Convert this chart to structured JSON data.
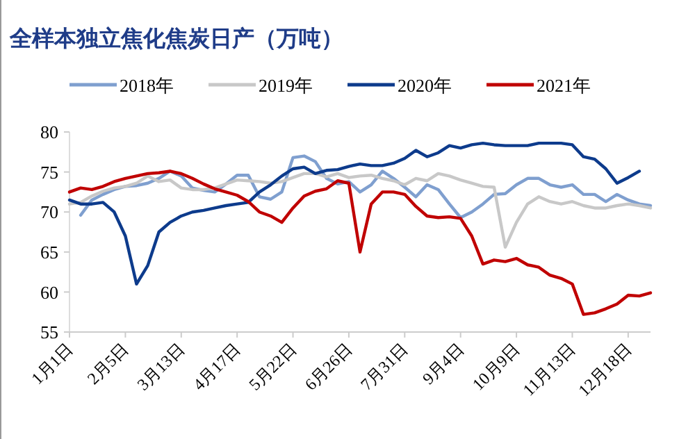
{
  "chart_data": {
    "type": "line",
    "title": "全样本独立焦化焦炭日产（万吨）",
    "categories": [
      "1月1日",
      null,
      null,
      null,
      null,
      "2月5日",
      null,
      null,
      null,
      null,
      "3月13日",
      null,
      null,
      null,
      null,
      "4月17日",
      null,
      null,
      null,
      null,
      "5月22日",
      null,
      null,
      null,
      null,
      "6月26日",
      null,
      null,
      null,
      null,
      "7月31日",
      null,
      null,
      null,
      null,
      "9月4日",
      null,
      null,
      null,
      null,
      "10月9日",
      null,
      null,
      null,
      null,
      "11月13日",
      null,
      null,
      null,
      null,
      "12月18日",
      null,
      null
    ],
    "series": [
      {
        "name": "2018年",
        "color": "#7f9fcf",
        "values": [
          null,
          69.6,
          71.5,
          72.2,
          72.8,
          73.2,
          73.3,
          73.6,
          74.2,
          75.1,
          74.5,
          73,
          72.7,
          72.5,
          73.5,
          74.6,
          74.6,
          71.9,
          71.6,
          72.5,
          76.8,
          77,
          76.3,
          74.2,
          73.5,
          73.8,
          72.5,
          73.4,
          75.1,
          74.2,
          73.1,
          71.9,
          73.4,
          72.8,
          71,
          69.3,
          70,
          71,
          72.2,
          72.3,
          73.4,
          74.2,
          74.2,
          73.4,
          73.1,
          73.4,
          72.2,
          72.2,
          71.3,
          72.2,
          71.5,
          71,
          70.8
        ]
      },
      {
        "name": "2019年",
        "color": "#c8c8c8",
        "values": [
          71,
          71.2,
          72,
          72.6,
          73,
          73.2,
          73.6,
          74.5,
          73.8,
          74,
          73,
          72.8,
          72.8,
          73,
          73.5,
          74,
          73.9,
          73.8,
          73.6,
          73.8,
          74.3,
          74.8,
          74.8,
          74.4,
          74.8,
          74.3,
          74.5,
          74.6,
          74.2,
          73.9,
          73.4,
          74.2,
          73.9,
          74.8,
          74.5,
          74,
          73.6,
          73.2,
          73.1,
          65.6,
          68.7,
          71,
          71.9,
          71.3,
          71,
          71.3,
          70.8,
          70.5,
          70.5,
          70.8,
          71,
          70.8,
          70.5
        ]
      },
      {
        "name": "2020年",
        "color": "#0d3b8c",
        "values": [
          71.5,
          71,
          71,
          71.2,
          70,
          67,
          61,
          63.3,
          67.5,
          68.7,
          69.5,
          70,
          70.2,
          70.5,
          70.8,
          71,
          71.2,
          72.5,
          73.4,
          74.5,
          75.4,
          75.6,
          74.8,
          75.2,
          75.3,
          75.7,
          76,
          75.8,
          75.8,
          76.1,
          76.7,
          77.7,
          76.9,
          77.4,
          78.3,
          78,
          78.4,
          78.6,
          78.4,
          78.3,
          78.3,
          78.3,
          78.6,
          78.6,
          78.6,
          78.4,
          76.9,
          76.6,
          75.4,
          73.6,
          74.3,
          75.1,
          null
        ]
      },
      {
        "name": "2021年",
        "color": "#c00000",
        "values": [
          72.5,
          73,
          72.8,
          73.2,
          73.8,
          74.2,
          74.5,
          74.8,
          74.9,
          75.1,
          74.8,
          74.2,
          73.5,
          72.9,
          72.5,
          72.1,
          71.3,
          70,
          69.5,
          68.7,
          70.5,
          72,
          72.6,
          72.9,
          73.9,
          73.6,
          65,
          71,
          72.5,
          72.5,
          72.2,
          70.7,
          69.5,
          69.3,
          69.4,
          69.2,
          67,
          63.5,
          64,
          63.8,
          64.2,
          63.4,
          63.1,
          62.1,
          61.7,
          61,
          57.2,
          57.4,
          57.9,
          58.5,
          59.6,
          59.5,
          59.9
        ]
      }
    ],
    "ylim": [
      55,
      80
    ],
    "yticks": [
      55,
      60,
      65,
      70,
      75,
      80
    ],
    "legend": "top",
    "grid": false
  }
}
